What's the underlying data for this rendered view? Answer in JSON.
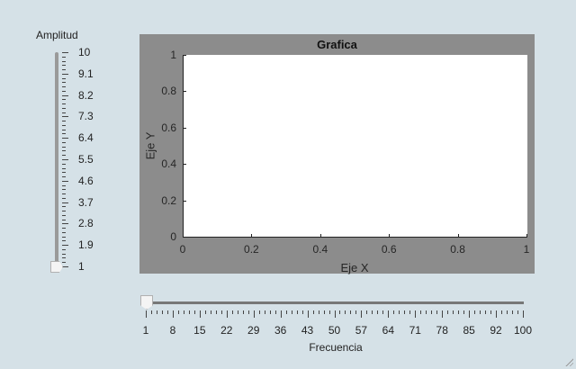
{
  "amplitude_slider": {
    "label": "Amplitud",
    "value": 1,
    "min": 1,
    "max": 10,
    "major_ticks": [
      "10",
      "9.1",
      "8.2",
      "7.3",
      "6.4",
      "5.5",
      "4.6",
      "3.7",
      "2.8",
      "1.9",
      "1"
    ]
  },
  "axes": {
    "title": "Grafica",
    "xlabel": "Eje X",
    "ylabel": "Eje Y",
    "xticks": [
      "0",
      "0.2",
      "0.4",
      "0.6",
      "0.8",
      "1"
    ],
    "yticks": [
      "0",
      "0.2",
      "0.4",
      "0.6",
      "0.8",
      "1"
    ],
    "xlim": [
      0,
      1
    ],
    "ylim": [
      0,
      1
    ],
    "panel_color": "#8c8c8c"
  },
  "frequency_slider": {
    "label": "Frecuencia",
    "value": 1,
    "min": 1,
    "max": 100,
    "major_ticks": [
      "1",
      "8",
      "15",
      "22",
      "29",
      "36",
      "43",
      "50",
      "57",
      "64",
      "71",
      "78",
      "85",
      "92",
      "100"
    ]
  }
}
